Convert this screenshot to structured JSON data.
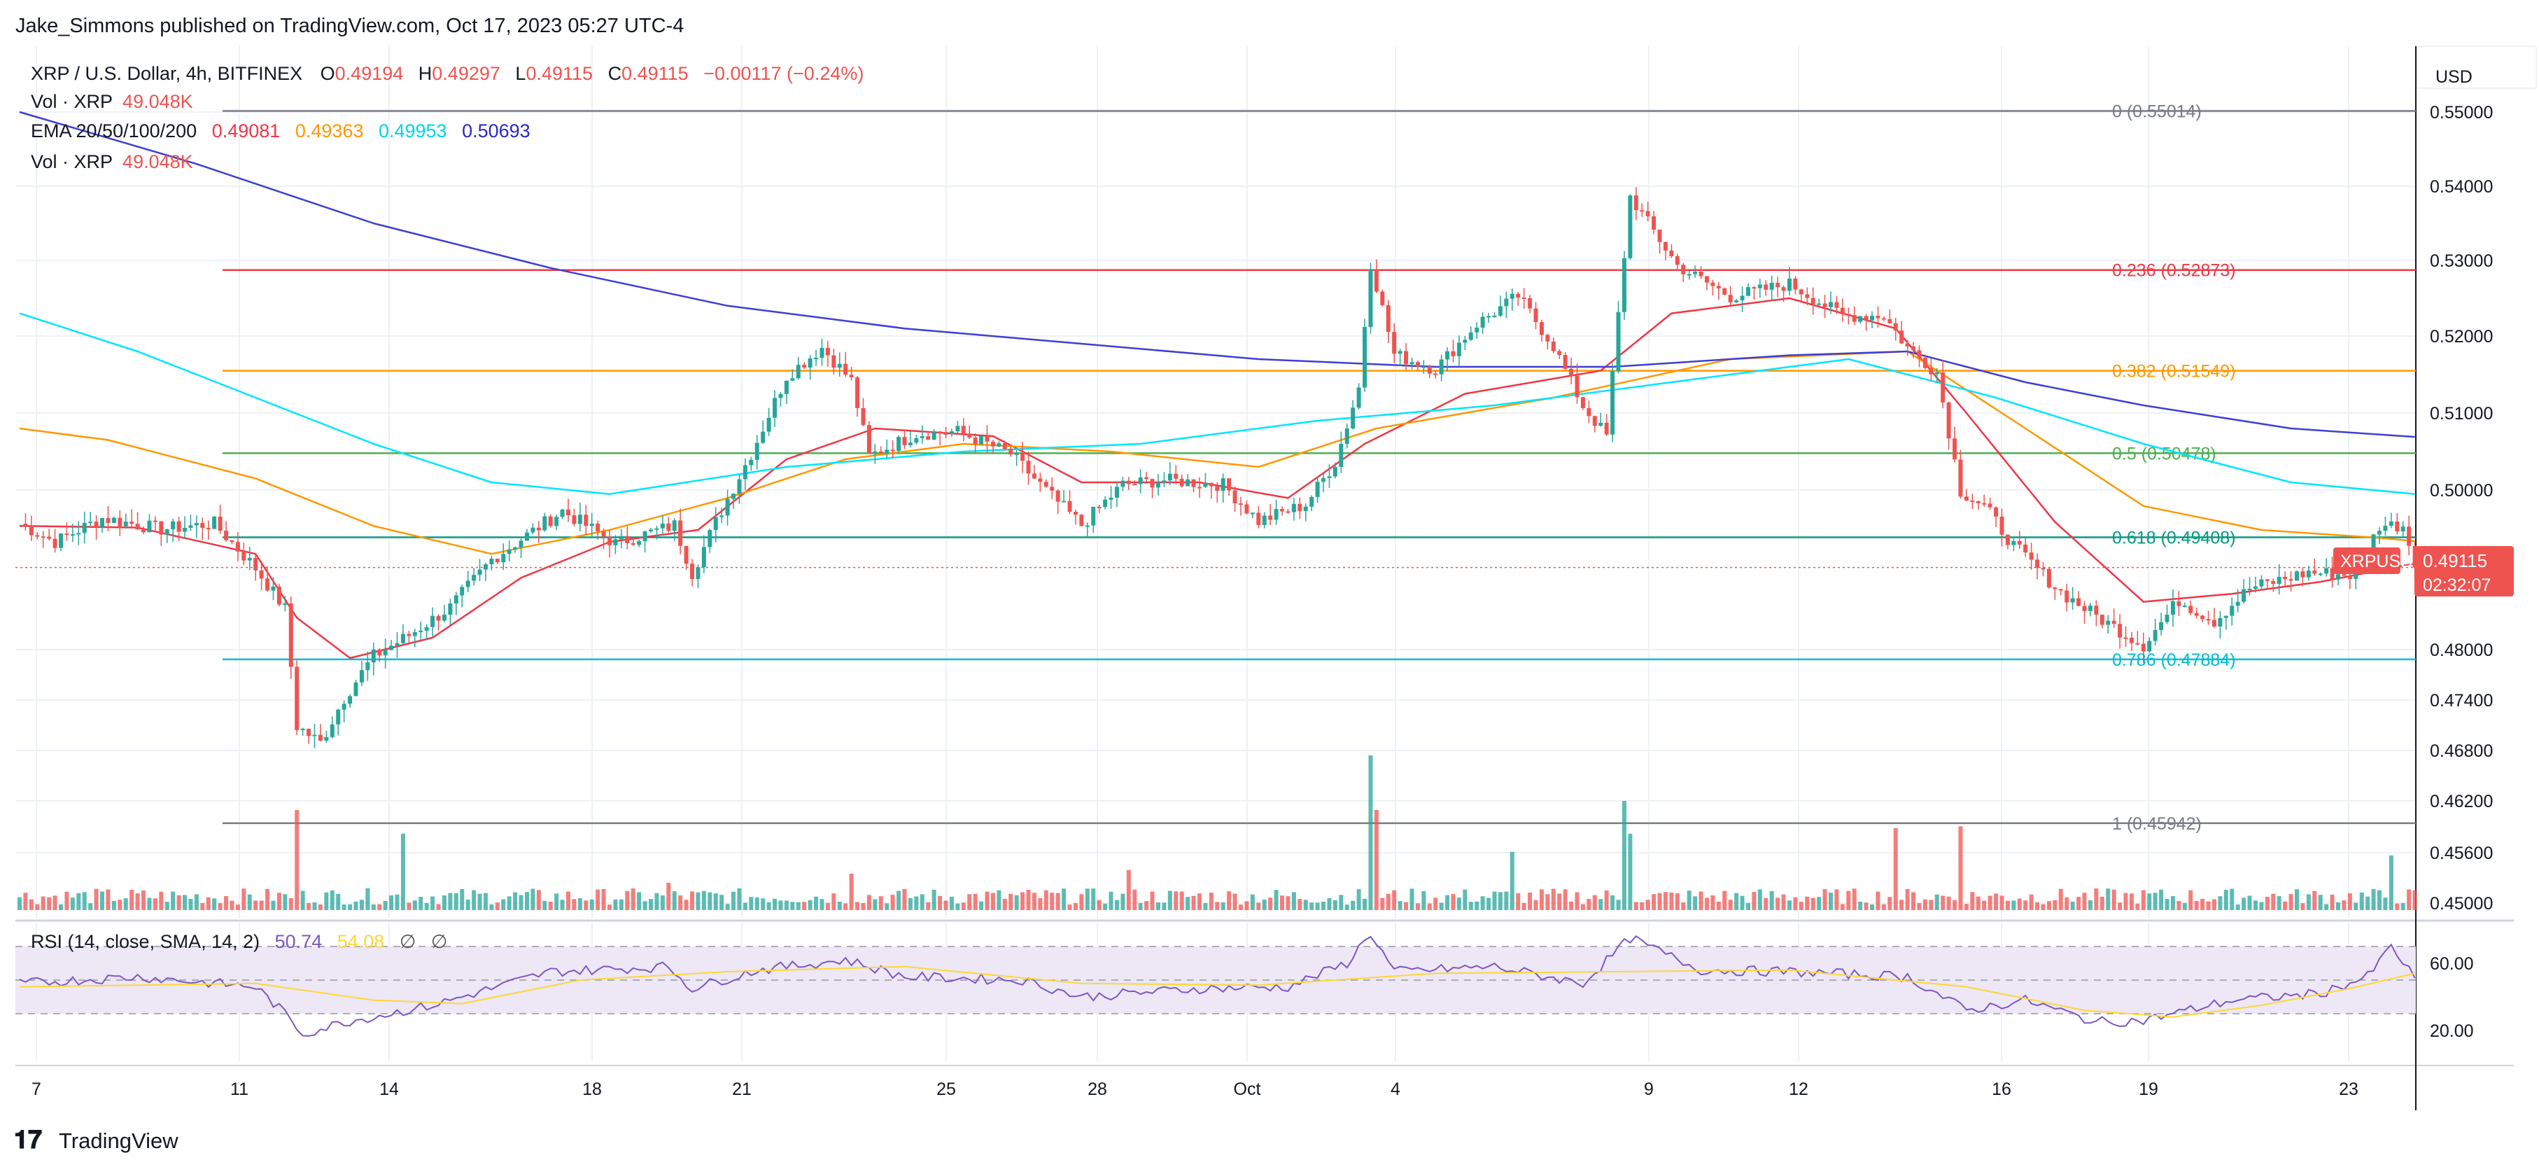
{
  "publisher": {
    "text": "Jake_Simmons published on TradingView.com, Oct 17, 2023 05:27 UTC-4"
  },
  "legend": {
    "symbol": "XRP / U.S. Dollar, 4h, BITFINEX",
    "ohlc": {
      "o_label": "O",
      "o": "0.49194",
      "h_label": "H",
      "h": "0.49297",
      "l_label": "L",
      "l": "0.49115",
      "c_label": "C",
      "c": "0.49115",
      "change": "−0.00117 (−0.24%)"
    },
    "vol1_label": "Vol · XRP",
    "vol1_value": "49.048K",
    "ema_label": "EMA 20/50/100/200",
    "ema_values": [
      "0.49081",
      "0.49363",
      "0.49953",
      "0.50693"
    ],
    "vol2_label": "Vol · XRP",
    "vol2_value": "49.048K",
    "rsi_label": "RSI (14, close, SMA, 14, 2)",
    "rsi_values": [
      "50.74",
      "54.08",
      "∅",
      "∅"
    ]
  },
  "price_axis": {
    "currency": "USD",
    "ticks": [
      "0.55000",
      "0.54000",
      "0.53000",
      "0.52000",
      "0.51000",
      "0.50000",
      "0.48000",
      "0.47400",
      "0.46800",
      "0.46200",
      "0.45600",
      "0.45000"
    ],
    "current_symbol": "XRPUSD",
    "current_price": "0.49115",
    "countdown": "02:32:07"
  },
  "rsi_axis": {
    "ticks": [
      "60.00",
      "20.00"
    ]
  },
  "time_axis": {
    "ticks": [
      "7",
      "11",
      "14",
      "18",
      "21",
      "25",
      "28",
      "Oct",
      "4",
      "9",
      "12",
      "16",
      "19",
      "23"
    ]
  },
  "fib_levels": [
    {
      "label": "0 (0.55014)",
      "price": 0.55014,
      "color": "#787b86"
    },
    {
      "label": "0.236 (0.52873)",
      "price": 0.52873,
      "color": "#f23645"
    },
    {
      "label": "0.382 (0.51549)",
      "price": 0.51549,
      "color": "#ff9800"
    },
    {
      "label": "0.5 (0.50478)",
      "price": 0.50478,
      "color": "#4caf50"
    },
    {
      "label": "0.618 (0.49408)",
      "price": 0.49408,
      "color": "#089981"
    },
    {
      "label": "0.786 (0.47884)",
      "price": 0.47884,
      "color": "#00bcd4"
    },
    {
      "label": "1 (0.45942)",
      "price": 0.45942,
      "color": "#787b86"
    }
  ],
  "brand": {
    "text": "TradingView"
  },
  "colors": {
    "up": "#26a69a",
    "down": "#ef5350",
    "ema20": "#f23645",
    "ema50": "#ff9800",
    "ema100": "#00e5ff",
    "ema200": "#3f3fd4",
    "rsi": "#7e57c2",
    "rsi_ma": "#fdd835",
    "rsi_band": "#ede7f6",
    "price_tag": "#ef5350"
  },
  "chart_data": {
    "type": "candlestick",
    "timeframe": "4h",
    "price_scale": {
      "type": "non-linear",
      "ticks": [
        0.55,
        0.54,
        0.53,
        0.52,
        0.51,
        0.5,
        0.48,
        0.474,
        0.468,
        0.462,
        0.456,
        0.45
      ]
    },
    "x_ticks": [
      "7",
      "11",
      "14",
      "18",
      "21",
      "25",
      "28",
      "Oct",
      "4",
      "9",
      "12",
      "16",
      "19",
      "23"
    ],
    "price_path": [
      [
        0,
        0.4958
      ],
      [
        6,
        0.4935
      ],
      [
        14,
        0.4965
      ],
      [
        24,
        0.4951
      ],
      [
        33,
        0.4958
      ],
      [
        40,
        0.4902
      ],
      [
        45,
        0.4851
      ],
      [
        47,
        0.4709
      ],
      [
        51,
        0.4689
      ],
      [
        55,
        0.4743
      ],
      [
        60,
        0.4792
      ],
      [
        66,
        0.4818
      ],
      [
        73,
        0.4853
      ],
      [
        80,
        0.4913
      ],
      [
        92,
        0.4974
      ],
      [
        101,
        0.4933
      ],
      [
        111,
        0.4956
      ],
      [
        114,
        0.4896
      ],
      [
        118,
        0.496
      ],
      [
        124,
        0.5047
      ],
      [
        130,
        0.5148
      ],
      [
        136,
        0.5185
      ],
      [
        141,
        0.5142
      ],
      [
        144,
        0.5044
      ],
      [
        152,
        0.5073
      ],
      [
        159,
        0.5076
      ],
      [
        168,
        0.5047
      ],
      [
        174,
        0.4999
      ],
      [
        180,
        0.4956
      ],
      [
        187,
        0.5007
      ],
      [
        194,
        0.5013
      ],
      [
        204,
        0.5007
      ],
      [
        210,
        0.4961
      ],
      [
        218,
        0.4982
      ],
      [
        223,
        0.5036
      ],
      [
        227,
        0.5133
      ],
      [
        229,
        0.5297
      ],
      [
        233,
        0.5176
      ],
      [
        240,
        0.5157
      ],
      [
        247,
        0.5216
      ],
      [
        254,
        0.5253
      ],
      [
        260,
        0.5187
      ],
      [
        265,
        0.5109
      ],
      [
        269,
        0.507
      ],
      [
        273,
        0.5386
      ],
      [
        281,
        0.5293
      ],
      [
        290,
        0.5252
      ],
      [
        300,
        0.5269
      ],
      [
        309,
        0.5227
      ],
      [
        316,
        0.5227
      ],
      [
        320,
        0.5185
      ],
      [
        325,
        0.5153
      ],
      [
        329,
        0.4999
      ],
      [
        333,
        0.498
      ],
      [
        338,
        0.493
      ],
      [
        346,
        0.4872
      ],
      [
        352,
        0.4842
      ],
      [
        360,
        0.4806
      ],
      [
        366,
        0.4862
      ],
      [
        372,
        0.4836
      ],
      [
        378,
        0.4877
      ],
      [
        388,
        0.4897
      ],
      [
        396,
        0.4893
      ],
      [
        400,
        0.4956
      ],
      [
        404,
        0.4956
      ],
      [
        406,
        0.4912
      ]
    ],
    "ema": {
      "ema20": [
        [
          0,
          0.4955
        ],
        [
          20,
          0.4953
        ],
        [
          40,
          0.492
        ],
        [
          47,
          0.484
        ],
        [
          56,
          0.479
        ],
        [
          70,
          0.4815
        ],
        [
          85,
          0.489
        ],
        [
          100,
          0.4935
        ],
        [
          115,
          0.495
        ],
        [
          130,
          0.504
        ],
        [
          145,
          0.508
        ],
        [
          165,
          0.507
        ],
        [
          180,
          0.501
        ],
        [
          200,
          0.501
        ],
        [
          215,
          0.499
        ],
        [
          228,
          0.506
        ],
        [
          245,
          0.5125
        ],
        [
          268,
          0.5155
        ],
        [
          280,
          0.523
        ],
        [
          300,
          0.525
        ],
        [
          318,
          0.521
        ],
        [
          330,
          0.51
        ],
        [
          345,
          0.496
        ],
        [
          360,
          0.486
        ],
        [
          375,
          0.487
        ],
        [
          390,
          0.4885
        ],
        [
          406,
          0.4908
        ]
      ],
      "ema50": [
        [
          0,
          0.508
        ],
        [
          15,
          0.5065
        ],
        [
          40,
          0.5015
        ],
        [
          60,
          0.4955
        ],
        [
          80,
          0.492
        ],
        [
          100,
          0.495
        ],
        [
          120,
          0.499
        ],
        [
          140,
          0.504
        ],
        [
          160,
          0.506
        ],
        [
          185,
          0.505
        ],
        [
          210,
          0.503
        ],
        [
          230,
          0.508
        ],
        [
          260,
          0.512
        ],
        [
          290,
          0.517
        ],
        [
          320,
          0.518
        ],
        [
          340,
          0.508
        ],
        [
          360,
          0.498
        ],
        [
          380,
          0.495
        ],
        [
          400,
          0.494
        ],
        [
          406,
          0.4936
        ]
      ],
      "ema100": [
        [
          0,
          0.523
        ],
        [
          20,
          0.518
        ],
        [
          40,
          0.512
        ],
        [
          60,
          0.506
        ],
        [
          80,
          0.501
        ],
        [
          100,
          0.4995
        ],
        [
          130,
          0.503
        ],
        [
          160,
          0.505
        ],
        [
          190,
          0.506
        ],
        [
          220,
          0.509
        ],
        [
          250,
          0.511
        ],
        [
          280,
          0.514
        ],
        [
          310,
          0.517
        ],
        [
          335,
          0.512
        ],
        [
          360,
          0.506
        ],
        [
          385,
          0.501
        ],
        [
          406,
          0.4995
        ]
      ],
      "ema200": [
        [
          0,
          0.55
        ],
        [
          30,
          0.543
        ],
        [
          60,
          0.535
        ],
        [
          90,
          0.529
        ],
        [
          120,
          0.524
        ],
        [
          150,
          0.521
        ],
        [
          180,
          0.519
        ],
        [
          210,
          0.517
        ],
        [
          240,
          0.516
        ],
        [
          270,
          0.516
        ],
        [
          300,
          0.5175
        ],
        [
          320,
          0.518
        ],
        [
          340,
          0.514
        ],
        [
          360,
          0.511
        ],
        [
          385,
          0.508
        ],
        [
          406,
          0.5069
        ]
      ]
    },
    "volume": {
      "description": "relative volume per candle, spikes near Sep 11, Sep 29, Oct 3, Oct 9, Oct 16"
    },
    "rsi": {
      "path": [
        [
          0,
          48
        ],
        [
          20,
          52
        ],
        [
          40,
          46
        ],
        [
          45,
          30
        ],
        [
          48,
          18
        ],
        [
          55,
          25
        ],
        [
          70,
          35
        ],
        [
          90,
          55
        ],
        [
          110,
          58
        ],
        [
          114,
          45
        ],
        [
          125,
          56
        ],
        [
          140,
          62
        ],
        [
          150,
          52
        ],
        [
          170,
          50
        ],
        [
          180,
          40
        ],
        [
          200,
          45
        ],
        [
          215,
          46
        ],
        [
          225,
          60
        ],
        [
          229,
          78
        ],
        [
          233,
          55
        ],
        [
          250,
          58
        ],
        [
          265,
          48
        ],
        [
          273,
          75
        ],
        [
          285,
          56
        ],
        [
          300,
          55
        ],
        [
          320,
          52
        ],
        [
          330,
          32
        ],
        [
          340,
          38
        ],
        [
          352,
          25
        ],
        [
          360,
          26
        ],
        [
          375,
          38
        ],
        [
          390,
          42
        ],
        [
          398,
          52
        ],
        [
          402,
          70
        ],
        [
          406,
          51
        ]
      ],
      "ma_path": [
        [
          0,
          46
        ],
        [
          40,
          48
        ],
        [
          60,
          38
        ],
        [
          75,
          36
        ],
        [
          95,
          50
        ],
        [
          120,
          55
        ],
        [
          150,
          58
        ],
        [
          180,
          48
        ],
        [
          210,
          47
        ],
        [
          240,
          54
        ],
        [
          270,
          55
        ],
        [
          300,
          56
        ],
        [
          330,
          46
        ],
        [
          350,
          32
        ],
        [
          365,
          28
        ],
        [
          380,
          35
        ],
        [
          395,
          45
        ],
        [
          406,
          54
        ]
      ],
      "band": [
        30,
        70
      ]
    }
  }
}
